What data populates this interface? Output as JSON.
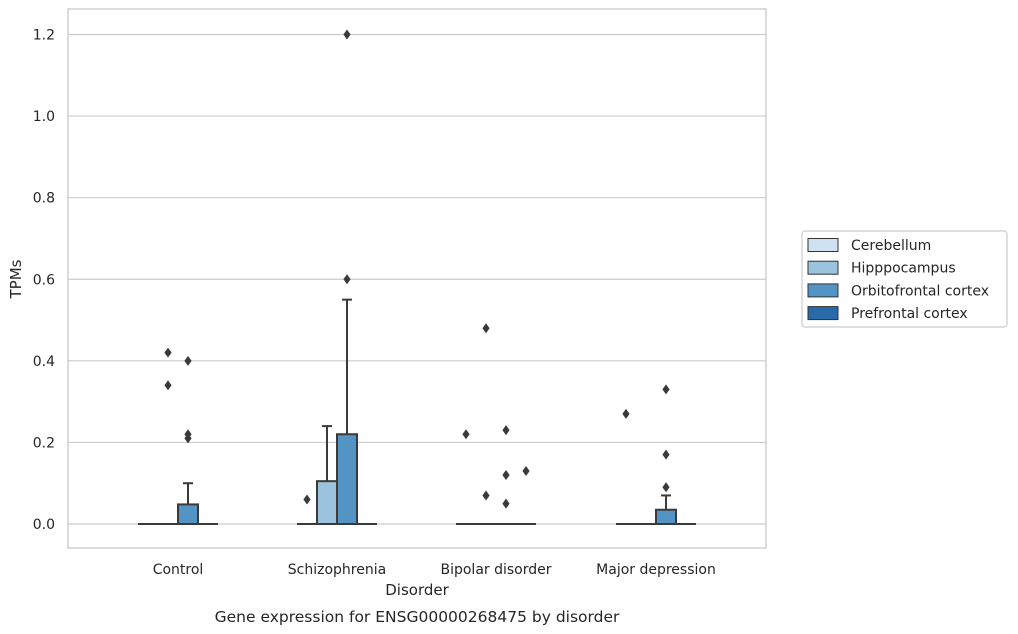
{
  "caption": "Gene expression for ENSG00000268475 by disorder",
  "chart_data": {
    "type": "box",
    "title": "",
    "xlabel": "Disorder",
    "ylabel": "TPMs",
    "ylim": [
      -0.06,
      1.26
    ],
    "yticks": [
      0.0,
      0.2,
      0.4,
      0.6,
      0.8,
      1.0,
      1.2
    ],
    "ytick_labels": [
      "0.0",
      "0.2",
      "0.4",
      "0.6",
      "0.8",
      "1.0",
      "1.2"
    ],
    "grid": "horizontal",
    "legend_position": "right",
    "categories": [
      "Control",
      "Schizophrenia",
      "Bipolar disorder",
      "Major depression"
    ],
    "series": [
      {
        "name": "Cerebellum",
        "color": "#d0e1f2",
        "boxes": [
          {
            "q1": 0,
            "median": 0,
            "q3": 0,
            "whisker_low": 0,
            "whisker_high": 0,
            "outliers": []
          },
          {
            "q1": 0,
            "median": 0,
            "q3": 0,
            "whisker_low": 0,
            "whisker_high": 0,
            "outliers": []
          },
          {
            "q1": 0,
            "median": 0,
            "q3": 0,
            "whisker_low": 0,
            "whisker_high": 0,
            "outliers": []
          },
          {
            "q1": 0,
            "median": 0,
            "q3": 0,
            "whisker_low": 0,
            "whisker_high": 0,
            "outliers": []
          }
        ]
      },
      {
        "name": "Hipppocampus",
        "color": "#9cc3dd",
        "boxes": [
          {
            "q1": 0,
            "median": 0,
            "q3": 0,
            "whisker_low": 0,
            "whisker_high": 0,
            "outliers": [
              0.34,
              0.42
            ]
          },
          {
            "q1": 0,
            "median": 0,
            "q3": 0.105,
            "whisker_low": 0,
            "whisker_high": 0.24,
            "outliers": []
          },
          {
            "q1": 0,
            "median": 0,
            "q3": 0,
            "whisker_low": 0,
            "whisker_high": 0,
            "outliers": [
              0.07,
              0.48
            ]
          },
          {
            "q1": 0,
            "median": 0,
            "q3": 0,
            "whisker_low": 0,
            "whisker_high": 0,
            "outliers": []
          }
        ]
      },
      {
        "name": "Orbitofrontal cortex",
        "color": "#5394c4",
        "boxes": [
          {
            "q1": 0,
            "median": 0,
            "q3": 0.048,
            "whisker_low": 0,
            "whisker_high": 0.1,
            "outliers": [
              0.21,
              0.22,
              0.4
            ]
          },
          {
            "q1": 0,
            "median": 0,
            "q3": 0.22,
            "whisker_low": 0,
            "whisker_high": 0.55,
            "outliers": [
              0.6,
              1.2
            ]
          },
          {
            "q1": 0,
            "median": 0,
            "q3": 0,
            "whisker_low": 0,
            "whisker_high": 0,
            "outliers": [
              0.05,
              0.12,
              0.23
            ]
          },
          {
            "q1": 0,
            "median": 0,
            "q3": 0.035,
            "whisker_low": 0,
            "whisker_high": 0.07,
            "outliers": [
              0.09,
              0.17,
              0.33
            ]
          }
        ]
      },
      {
        "name": "Prefrontal cortex",
        "color": "#2b6aa8",
        "boxes": [
          {
            "q1": 0,
            "median": 0,
            "q3": 0,
            "whisker_low": 0,
            "whisker_high": 0,
            "outliers": []
          },
          {
            "q1": 0,
            "median": 0,
            "q3": 0,
            "whisker_low": 0,
            "whisker_high": 0,
            "outliers": []
          },
          {
            "q1": 0,
            "median": 0,
            "q3": 0,
            "whisker_low": 0,
            "whisker_high": 0,
            "outliers": [
              0.13
            ]
          },
          {
            "q1": 0,
            "median": 0,
            "q3": 0,
            "whisker_low": 0,
            "whisker_high": 0,
            "outliers": []
          }
        ]
      }
    ],
    "extra_outliers": [
      {
        "category": "Schizophrenia",
        "side": "left",
        "value": 0.06
      },
      {
        "category": "Bipolar disorder",
        "side": "left",
        "value": 0.22
      },
      {
        "category": "Major depression",
        "side": "left",
        "value": 0.27
      }
    ]
  }
}
